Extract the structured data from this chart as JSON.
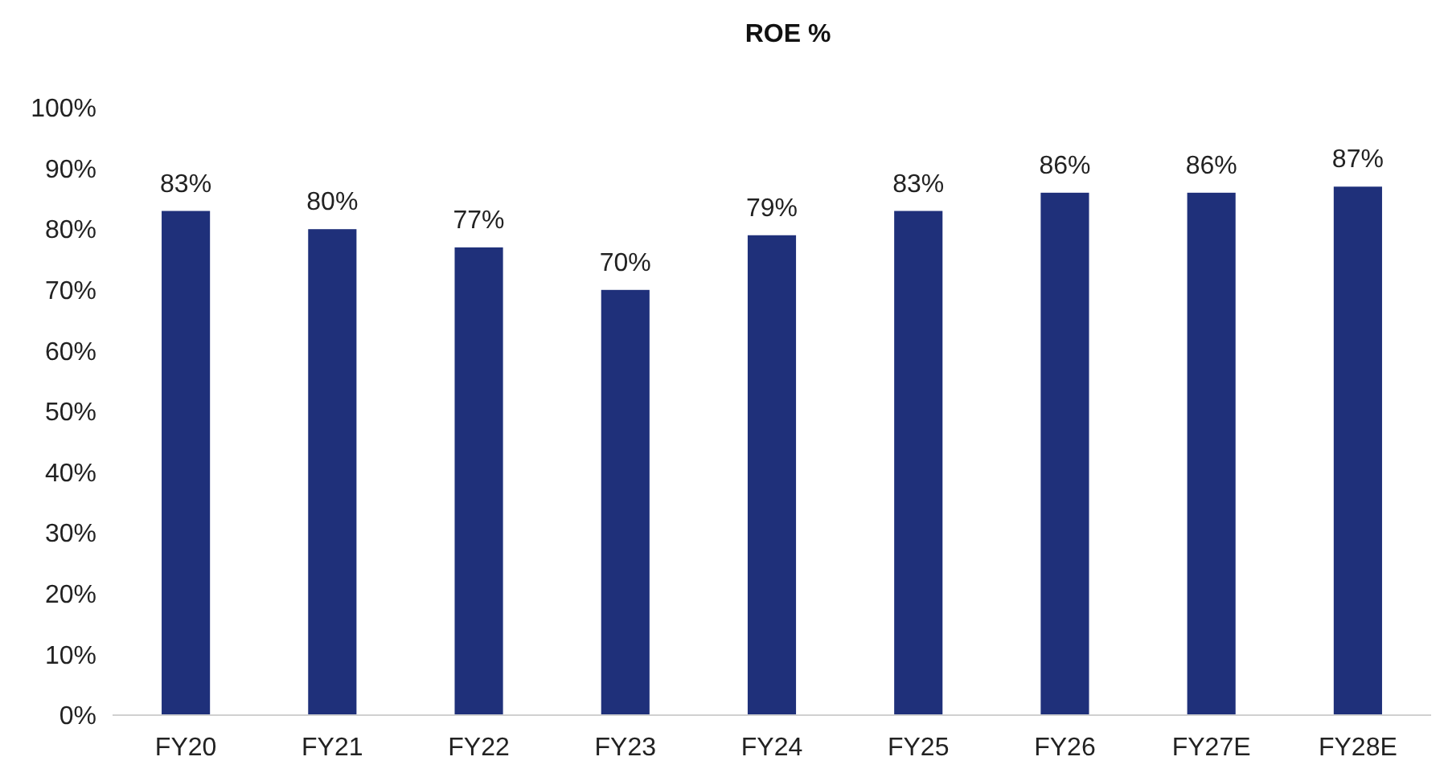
{
  "chart_data": {
    "type": "bar",
    "title": "ROE %",
    "categories": [
      "FY20",
      "FY21",
      "FY22",
      "FY23",
      "FY24",
      "FY25",
      "FY26",
      "FY27E",
      "FY28E"
    ],
    "values": [
      83,
      80,
      77,
      70,
      79,
      83,
      86,
      86,
      87
    ],
    "value_labels": [
      "83%",
      "80%",
      "77%",
      "70%",
      "79%",
      "83%",
      "86%",
      "86%",
      "87%"
    ],
    "color": "#1f307a",
    "ylim": [
      0,
      100
    ],
    "yticks": [
      {
        "value": 0,
        "label": "0%"
      },
      {
        "value": 10,
        "label": "10%"
      },
      {
        "value": 20,
        "label": "20%"
      },
      {
        "value": 30,
        "label": "30%"
      },
      {
        "value": 40,
        "label": "40%"
      },
      {
        "value": 50,
        "label": "50%"
      },
      {
        "value": 60,
        "label": "60%"
      },
      {
        "value": 70,
        "label": "70%"
      },
      {
        "value": 80,
        "label": "80%"
      },
      {
        "value": 90,
        "label": "90%"
      },
      {
        "value": 100,
        "label": "100%"
      }
    ]
  }
}
